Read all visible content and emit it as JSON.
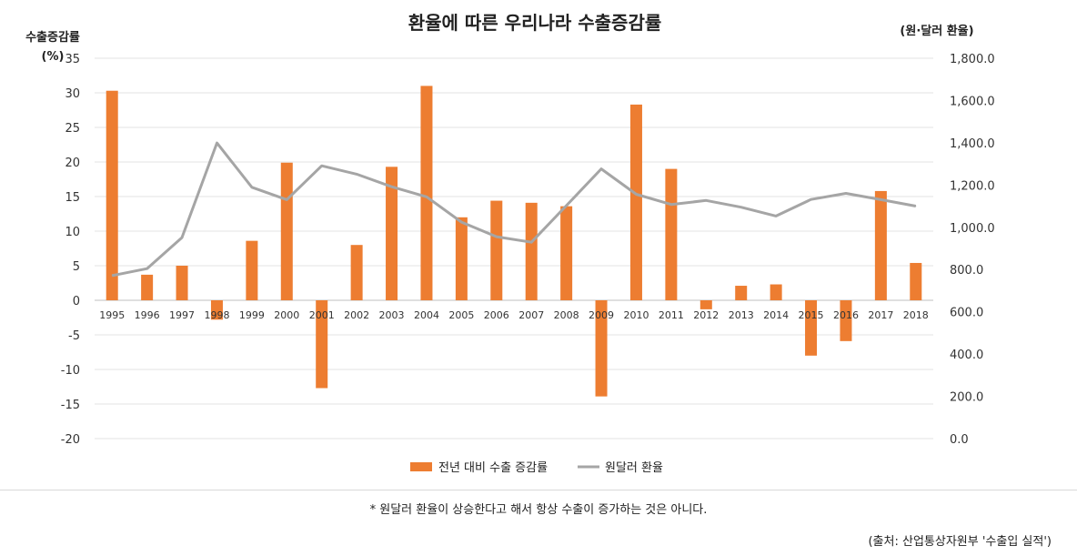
{
  "chart_data": {
    "type": "bar+line",
    "title": "환율에 따른 우리나라 수출증감률",
    "categories": [
      "1995",
      "1996",
      "1997",
      "1998",
      "1999",
      "2000",
      "2001",
      "2002",
      "2003",
      "2004",
      "2005",
      "2006",
      "2007",
      "2008",
      "2009",
      "2010",
      "2011",
      "2012",
      "2013",
      "2014",
      "2015",
      "2016",
      "2017",
      "2018"
    ],
    "series": [
      {
        "name": "전년 대비 수출 증감률",
        "type": "bar",
        "axis": "left",
        "color": "#ED7D31",
        "values": [
          30.3,
          3.7,
          5.0,
          -2.8,
          8.6,
          19.9,
          -12.7,
          8.0,
          19.3,
          31.0,
          12.0,
          14.4,
          14.1,
          13.6,
          -13.9,
          28.3,
          19.0,
          -1.3,
          2.1,
          2.3,
          -8.0,
          -5.9,
          15.8,
          5.4
        ]
      },
      {
        "name": "원달러 환율",
        "type": "line",
        "axis": "right",
        "color": "#A5A5A5",
        "values": [
          771.3,
          804.5,
          951.3,
          1398.9,
          1189.5,
          1130.6,
          1290.8,
          1251.2,
          1191.9,
          1144.1,
          1024.3,
          955.5,
          929.2,
          1102.6,
          1276.4,
          1156.3,
          1108.1,
          1126.9,
          1095.0,
          1053.2,
          1131.5,
          1160.5,
          1130.8,
          1100.3
        ]
      }
    ],
    "ylabel_left": "수출증감률",
    "ylabel_left_unit": "(%)",
    "ylabel_right": "(원·달러 환율)",
    "ylim_left": [
      -20,
      35
    ],
    "yticks_left": [
      "35",
      "30",
      "25",
      "20",
      "15",
      "10",
      "5",
      "0",
      "-5",
      "-10",
      "-15",
      "-20"
    ],
    "ylim_right": [
      0,
      1800
    ],
    "yticks_right": [
      "1,800.0",
      "1,600.0",
      "1,400.0",
      "1,200.0",
      "1,000.0",
      "800.0",
      "600.0",
      "400.0",
      "200.0",
      "0.0"
    ],
    "legend": [
      "전년 대비 수출 증감률",
      "원달러 환율"
    ],
    "legend_position": "bottom-center",
    "grid": true
  },
  "note": "* 원달러 환율이 상승한다고 해서 항상 수출이 증가하는 것은 아니다.",
  "source": "(출처: 산업통상자원부 '수출입 실적')"
}
